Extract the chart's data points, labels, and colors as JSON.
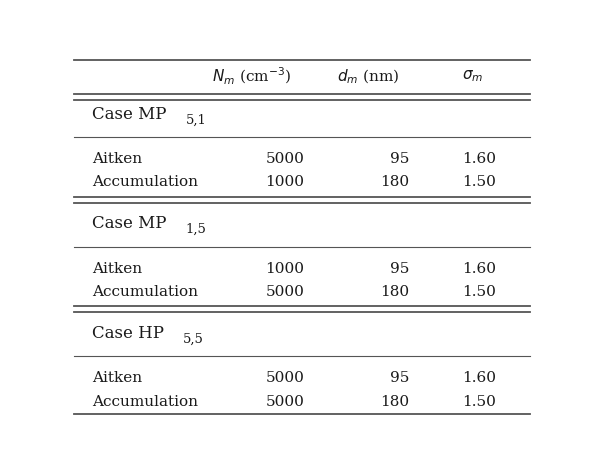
{
  "sections": [
    {
      "label": "Case MP",
      "subscript": "5,1",
      "rows": [
        {
          "mode": "Aitken",
          "Nm": "5000",
          "dm": "95",
          "sigma": "1.60"
        },
        {
          "mode": "Accumulation",
          "Nm": "1000",
          "dm": "180",
          "sigma": "1.50"
        }
      ]
    },
    {
      "label": "Case MP",
      "subscript": "1,5",
      "rows": [
        {
          "mode": "Aitken",
          "Nm": "1000",
          "dm": "95",
          "sigma": "1.60"
        },
        {
          "mode": "Accumulation",
          "Nm": "5000",
          "dm": "180",
          "sigma": "1.50"
        }
      ]
    },
    {
      "label": "Case HP",
      "subscript": "5,5",
      "rows": [
        {
          "mode": "Aitken",
          "Nm": "5000",
          "dm": "95",
          "sigma": "1.60"
        },
        {
          "mode": "Accumulation",
          "Nm": "5000",
          "dm": "180",
          "sigma": "1.50"
        }
      ]
    }
  ],
  "bg_color": "#ffffff",
  "text_color": "#1a1a1a",
  "line_color": "#555555",
  "header_fontsize": 11,
  "section_fontsize": 12,
  "data_fontsize": 11
}
